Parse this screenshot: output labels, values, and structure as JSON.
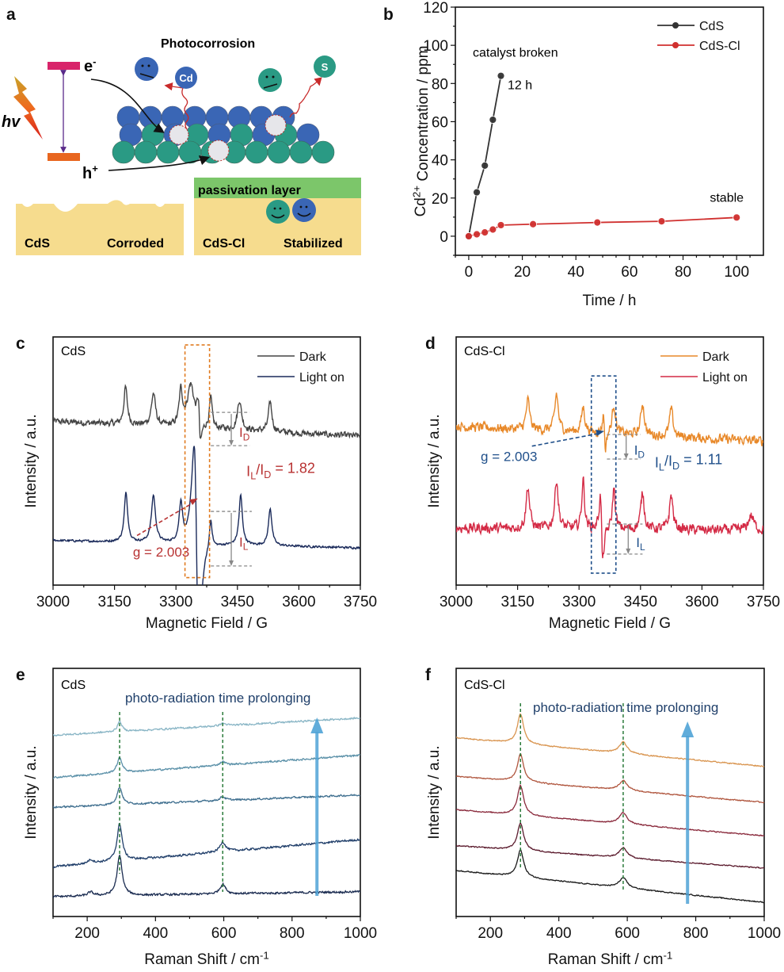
{
  "diagram": {
    "panel_letter": "a",
    "title": "Photocorrosion",
    "electron_label": "e",
    "electron_sup": "-",
    "hole_label": "h",
    "hole_sup": "+",
    "light_label": "hv",
    "cd_ion": "Cd",
    "s_ion": "S",
    "left_box": {
      "material": "CdS",
      "state": "Corroded"
    },
    "right_box": {
      "layer": "passivation layer",
      "material": "CdS-Cl",
      "state": "Stabilized"
    },
    "colors": {
      "cd_atom": "#3a66b5",
      "s_atom": "#2a9a84",
      "substrate": "#f6dc8e",
      "passivation": "#7cc66a",
      "cb": "#d8246a",
      "vb": "#e8661f"
    }
  },
  "chart_data": [
    {
      "panel": "b",
      "type": "line",
      "xlabel": "Time / h",
      "ylabel_parts": [
        [
          "Cd",
          ""
        ],
        [
          "2+",
          "sup"
        ],
        [
          " Concentration / ppm",
          ""
        ]
      ],
      "xlim": [
        -5,
        110
      ],
      "ylim": [
        -10,
        120
      ],
      "xticks": [
        0,
        20,
        40,
        60,
        80,
        100
      ],
      "yticks": [
        0,
        20,
        40,
        60,
        80,
        100,
        120
      ],
      "grid": false,
      "legend_placement": "top-right",
      "series": [
        {
          "name": "CdS",
          "color": "#333333",
          "x": [
            0,
            3,
            6,
            9,
            12
          ],
          "y": [
            0,
            23,
            37,
            61,
            84
          ]
        },
        {
          "name": "CdS-Cl",
          "color": "#d0302f",
          "x": [
            0,
            3,
            6,
            9,
            12,
            24,
            48,
            72,
            100
          ],
          "y": [
            0,
            1,
            2,
            3.5,
            5.8,
            6.3,
            7.2,
            7.8,
            9.8
          ]
        }
      ],
      "annotations": [
        {
          "text": "catalyst broken",
          "x": 1.5,
          "y": 94
        },
        {
          "text": "12 h",
          "x": 14.5,
          "y": 77
        },
        {
          "text": "stable",
          "x": 90,
          "y": 18
        }
      ]
    },
    {
      "panel": "c",
      "type": "line",
      "sample_label": "CdS",
      "xlabel": "Magnetic Field / G",
      "ylabel": "Intensity / a.u.",
      "xlim": [
        3000,
        3750
      ],
      "ylim": [
        0,
        1
      ],
      "xticks": [
        3000,
        3150,
        3300,
        3450,
        3600,
        3750
      ],
      "grid": false,
      "legend_placement": "top-right",
      "series": [
        {
          "name": "Dark",
          "color": "#444444",
          "baseline": [
            0.66,
            0.6
          ],
          "noise": 0.018,
          "peaks": [
            [
              3177,
              0.15,
              5,
              "l"
            ],
            [
              3245,
              0.13,
              6,
              "l"
            ],
            [
              3312,
              0.14,
              5,
              "l"
            ],
            [
              3336,
              0.17,
              10,
              "l"
            ],
            [
              3385,
              0.12,
              4,
              "l"
            ],
            [
              3455,
              0.12,
              6,
              "l"
            ],
            [
              3530,
              0.12,
              5,
              "l"
            ],
            [
              3357,
              0.16,
              5,
              "d"
            ]
          ]
        },
        {
          "name": "Light on",
          "color": "#1a2a5a",
          "baseline": [
            0.18,
            0.15
          ],
          "noise": 0.006,
          "peaks": [
            [
              3178,
              0.2,
              5,
              "l"
            ],
            [
              3245,
              0.19,
              6,
              "l"
            ],
            [
              3312,
              0.16,
              5,
              "l"
            ],
            [
              3350,
              0.78,
              10,
              "d"
            ],
            [
              3385,
              0.12,
              4,
              "l"
            ],
            [
              3458,
              0.2,
              5,
              "l"
            ],
            [
              3530,
              0.15,
              5,
              "l"
            ]
          ]
        }
      ],
      "g_label": "g = 2.003",
      "ratio_parts": [
        [
          "I",
          ""
        ],
        [
          "L",
          "sub"
        ],
        [
          "/I",
          ""
        ],
        [
          "D",
          "sub"
        ],
        [
          " = 1.82",
          ""
        ]
      ],
      "id_parts": [
        [
          "I",
          ""
        ],
        [
          "D",
          "sub"
        ]
      ],
      "il_parts": [
        [
          "I",
          ""
        ],
        [
          "L",
          "sub"
        ]
      ],
      "accent": "#b83232",
      "box_color": "#e07b20"
    },
    {
      "panel": "d",
      "type": "line",
      "sample_label": "CdS-Cl",
      "xlabel": "Magnetic Field / G",
      "ylabel": "Intensity / a.u.",
      "xlim": [
        3000,
        3750
      ],
      "ylim": [
        0,
        1
      ],
      "xticks": [
        3000,
        3150,
        3300,
        3450,
        3600,
        3750
      ],
      "grid": false,
      "legend_placement": "top-right",
      "series": [
        {
          "name": "Dark",
          "color": "#e8892a",
          "baseline": [
            0.64,
            0.58
          ],
          "noise": 0.028,
          "peaks": [
            [
              3175,
              0.12,
              5,
              "l"
            ],
            [
              3245,
              0.15,
              5,
              "l"
            ],
            [
              3310,
              0.1,
              5,
              "l"
            ],
            [
              3385,
              0.12,
              5,
              "l"
            ],
            [
              3455,
              0.13,
              5,
              "l"
            ],
            [
              3525,
              0.11,
              5,
              "l"
            ],
            [
              3362,
              0.14,
              4,
              "d"
            ]
          ]
        },
        {
          "name": "Light on",
          "color": "#d42a45",
          "baseline": [
            0.23,
            0.22
          ],
          "noise": 0.03,
          "peaks": [
            [
              3175,
              0.17,
              5,
              "l"
            ],
            [
              3245,
              0.2,
              5,
              "l"
            ],
            [
              3310,
              0.2,
              4,
              "l"
            ],
            [
              3385,
              0.17,
              4,
              "l"
            ],
            [
              3455,
              0.15,
              5,
              "l"
            ],
            [
              3525,
              0.14,
              5,
              "l"
            ],
            [
              3355,
              0.26,
              5,
              "d"
            ],
            [
              3720,
              0.06,
              8,
              "l"
            ]
          ]
        }
      ],
      "g_label": "g = 2.003",
      "ratio_parts": [
        [
          "I",
          ""
        ],
        [
          "L",
          "sub"
        ],
        [
          "/I",
          ""
        ],
        [
          "D",
          "sub"
        ],
        [
          " = 1.11",
          ""
        ]
      ],
      "id_parts": [
        [
          "I",
          ""
        ],
        [
          "D",
          "sub"
        ]
      ],
      "il_parts": [
        [
          "I",
          ""
        ],
        [
          "L",
          "sub"
        ]
      ],
      "accent": "#1f4f8a",
      "box_color": "#1f4f8a"
    },
    {
      "panel": "e",
      "type": "line",
      "sample_label": "CdS",
      "xlabel_parts": [
        [
          "Raman Shift / cm",
          ""
        ],
        [
          "-1",
          "sup"
        ]
      ],
      "ylabel": "Intensity / a.u.",
      "xlim": [
        100,
        1000
      ],
      "ylim": [
        0,
        1
      ],
      "xticks": [
        200,
        400,
        600,
        800,
        1000
      ],
      "grid": false,
      "arrow_label": "photo-radiation time prolonging",
      "arrow_color": "#4fa3d6",
      "peak_lines": [
        295,
        597
      ],
      "series": [
        {
          "color": "#1a2b50",
          "baseline": [
            0.08,
            0.1
          ],
          "noise": 0.006,
          "peaks": [
            [
              295,
              0.16,
              9
            ],
            [
              597,
              0.04,
              10
            ],
            [
              210,
              0.015,
              10
            ]
          ]
        },
        {
          "color": "#213f6a",
          "baseline": [
            0.2,
            0.31
          ],
          "noise": 0.006,
          "peaks": [
            [
              295,
              0.15,
              9
            ],
            [
              597,
              0.04,
              10
            ],
            [
              210,
              0.015,
              10
            ]
          ]
        },
        {
          "color": "#3f6f8f",
          "baseline": [
            0.44,
            0.49
          ],
          "noise": 0.005,
          "peaks": [
            [
              295,
              0.07,
              9
            ],
            [
              597,
              0.015,
              10
            ]
          ]
        },
        {
          "color": "#5a90a8",
          "baseline": [
            0.56,
            0.65
          ],
          "noise": 0.005,
          "peaks": [
            [
              295,
              0.06,
              9
            ],
            [
              597,
              0.015,
              10
            ]
          ]
        },
        {
          "color": "#8ab6c6",
          "baseline": [
            0.73,
            0.8
          ],
          "noise": 0.005,
          "peaks": [
            [
              295,
              0.04,
              8
            ],
            [
              597,
              0.01,
              10
            ]
          ]
        }
      ]
    },
    {
      "panel": "f",
      "type": "line",
      "sample_label": "CdS-Cl",
      "xlabel_parts": [
        [
          "Raman Shift / cm",
          ""
        ],
        [
          "-1",
          "sup"
        ]
      ],
      "ylabel": "Intensity / a.u.",
      "xlim": [
        100,
        1000
      ],
      "ylim": [
        0,
        1
      ],
      "xticks": [
        200,
        400,
        600,
        800,
        1000
      ],
      "grid": false,
      "arrow_label": "photo-radiation time prolonging",
      "arrow_color": "#4fa3d6",
      "peak_lines": [
        288,
        588
      ],
      "series": [
        {
          "color": "#1a1a1a",
          "baseline": [
            0.185,
            0.057
          ],
          "noise": 0.003,
          "peaks": [
            [
              288,
              0.11,
              11
            ],
            [
              588,
              0.04,
              14
            ]
          ]
        },
        {
          "color": "#5a1a2c",
          "baseline": [
            0.285,
            0.195
          ],
          "noise": 0.003,
          "peaks": [
            [
              288,
              0.11,
              11
            ],
            [
              588,
              0.04,
              14
            ]
          ]
        },
        {
          "color": "#8a2a3c",
          "baseline": [
            0.43,
            0.325
          ],
          "noise": 0.003,
          "peaks": [
            [
              288,
              0.12,
              11
            ],
            [
              588,
              0.045,
              14
            ]
          ]
        },
        {
          "color": "#b0563e",
          "baseline": [
            0.565,
            0.46
          ],
          "noise": 0.003,
          "peaks": [
            [
              288,
              0.11,
              11
            ],
            [
              588,
              0.04,
              14
            ]
          ]
        },
        {
          "color": "#d99550",
          "baseline": [
            0.72,
            0.605
          ],
          "noise": 0.003,
          "peaks": [
            [
              288,
              0.12,
              11
            ],
            [
              588,
              0.045,
              14
            ]
          ]
        }
      ]
    }
  ]
}
